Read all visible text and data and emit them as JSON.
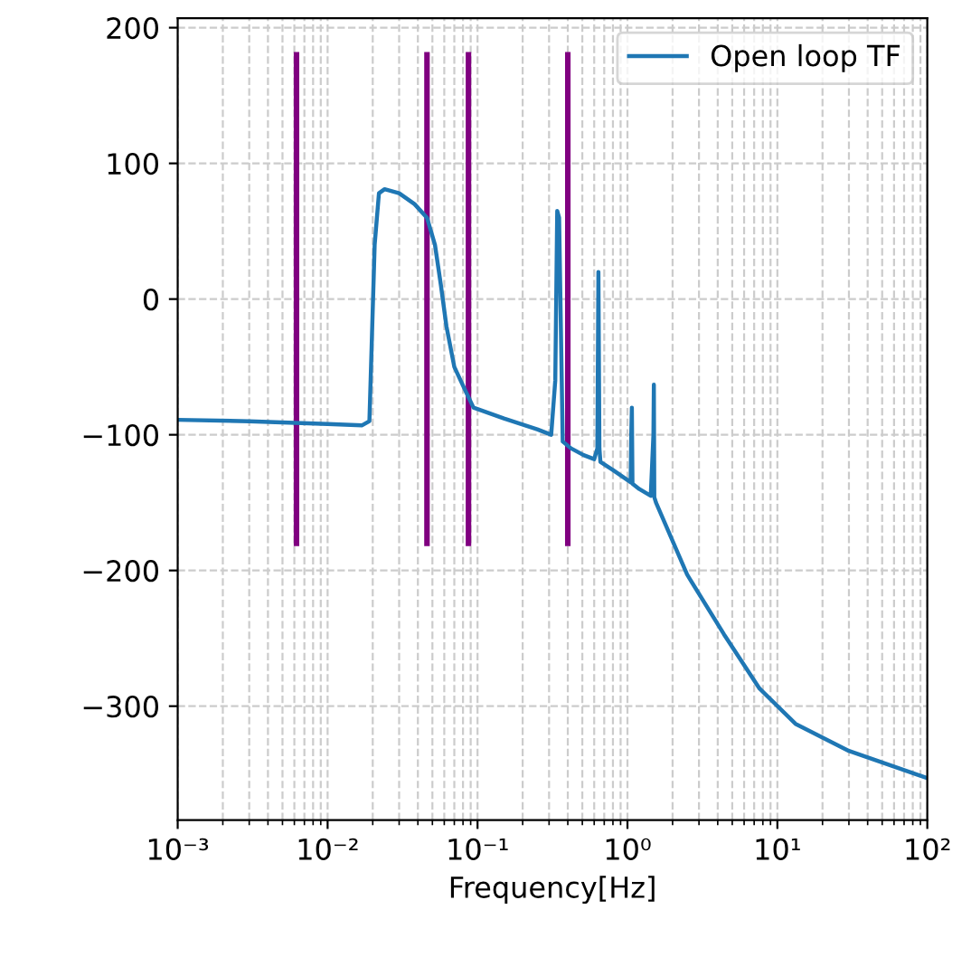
{
  "chart_data": {
    "type": "line",
    "xlabel": "Frequency[Hz]",
    "log": "x",
    "grid": true,
    "legend": "top right",
    "xlim": [
      0.001,
      100
    ],
    "ylim": [
      -384,
      207
    ],
    "xticks": [
      {
        "value": 0.001,
        "label": "10⁻³"
      },
      {
        "value": 0.01,
        "label": "10⁻²"
      },
      {
        "value": 0.1,
        "label": "10⁻¹"
      },
      {
        "value": 1,
        "label": "10⁰"
      },
      {
        "value": 10,
        "label": "10¹"
      },
      {
        "value": 100,
        "label": "10²"
      }
    ],
    "yticks": [
      {
        "value": -300,
        "label": "−300"
      },
      {
        "value": -200,
        "label": "−200"
      },
      {
        "value": -100,
        "label": "−100"
      },
      0,
      100,
      200
    ],
    "series": [
      {
        "color": "#800080",
        "x": [
          0.0062,
          0.0062,
          null,
          0.046,
          0.046,
          null,
          0.087,
          0.087,
          null,
          0.4,
          0.4
        ],
        "values": [
          -180,
          180,
          null,
          -180,
          180,
          null,
          -180,
          180,
          null,
          -180,
          180
        ]
      },
      {
        "name": "Open loop TF",
        "color": "#1f77b4",
        "x": [
          0.001,
          0.003,
          0.01,
          0.017,
          0.019,
          0.0206,
          0.022,
          0.024,
          0.03,
          0.038,
          0.046,
          0.052,
          0.057,
          0.062,
          0.07,
          0.085,
          0.094,
          0.15,
          0.25,
          0.31,
          0.33,
          0.34,
          0.35,
          0.37,
          0.42,
          0.51,
          0.6,
          0.63,
          0.64,
          0.65,
          0.66,
          0.8,
          1.05,
          1.06,
          1.07,
          1.08,
          1.2,
          1.43,
          1.49,
          1.5,
          1.51,
          1.55,
          2.5,
          4.4,
          7.6,
          13.2,
          30,
          100
        ],
        "values": [
          -89,
          -90,
          -92,
          -93,
          -90,
          40,
          78,
          81,
          78,
          70,
          60,
          40,
          10,
          -20,
          -50,
          -70,
          -80,
          -88,
          -96,
          -100,
          -60,
          65,
          60,
          -105,
          -110,
          -115,
          -118,
          -110,
          20,
          -110,
          -120,
          -126,
          -135,
          -100,
          -80,
          -136,
          -140,
          -145,
          -100,
          -63,
          -146,
          -150,
          -203,
          -247,
          -287,
          -313,
          -333,
          -353
        ]
      }
    ]
  }
}
